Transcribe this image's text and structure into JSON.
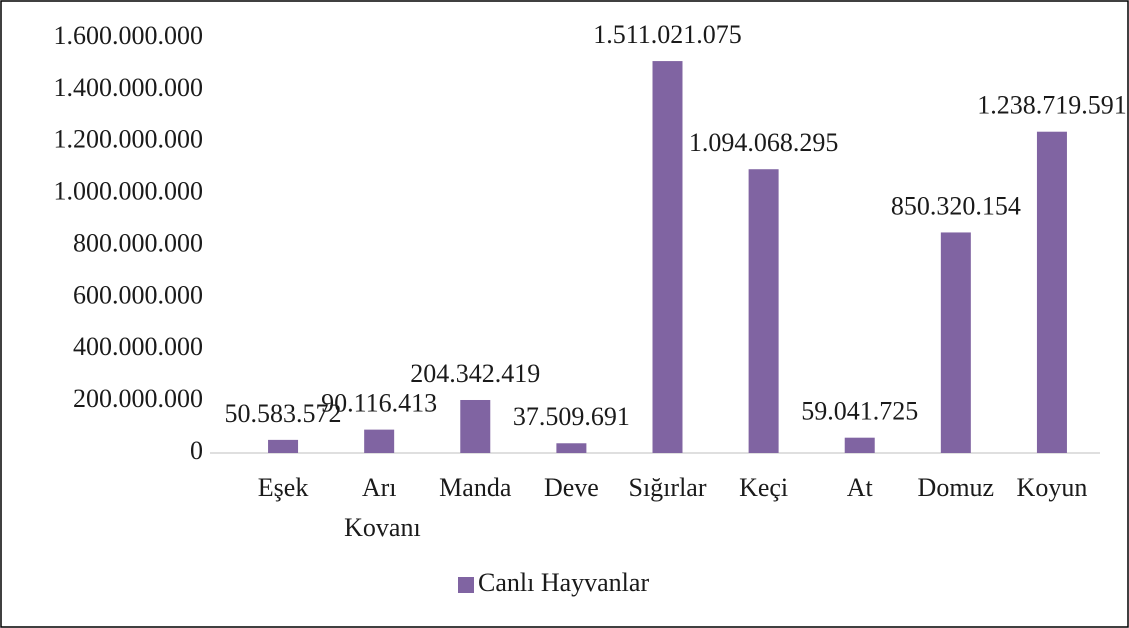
{
  "chart_data": {
    "type": "bar",
    "categories": [
      "Eşek",
      "Arı Kovanı",
      "Manda",
      "Deve",
      "Sığırlar",
      "Keçi",
      "At",
      "Domuz",
      "Koyun"
    ],
    "series": [
      {
        "name": "Canlı Hayvanlar",
        "color": "#8064a2",
        "values": [
          50583572,
          90116413,
          204342419,
          37509691,
          1511021075,
          1094068295,
          59041725,
          850320154,
          1238719591
        ],
        "value_labels": [
          "50.583.572",
          "90.116.413",
          "204.342.419",
          "37.509.691",
          "1.511.021.075",
          "1.094.068.295",
          "59.041.725",
          "850.320.154",
          "1.238.719.591"
        ]
      }
    ],
    "ylim": [
      0,
      1600000000
    ],
    "yticks": [
      0,
      {
        "value": 200000000,
        "label": "200.000.000"
      },
      {
        "value": 400000000,
        "label": "400.000.000"
      },
      {
        "value": 600000000,
        "label": "600.000.000"
      },
      {
        "value": 800000000,
        "label": "800.000.000"
      },
      {
        "value": 1000000000,
        "label": "1.000.000.000"
      },
      {
        "value": 1200000000,
        "label": "1.200.000.000"
      },
      {
        "value": 1400000000,
        "label": "1.400.000.000"
      },
      {
        "value": 1600000000,
        "label": "1.600.000.000"
      }
    ],
    "legend": "bottom",
    "grid": false
  }
}
